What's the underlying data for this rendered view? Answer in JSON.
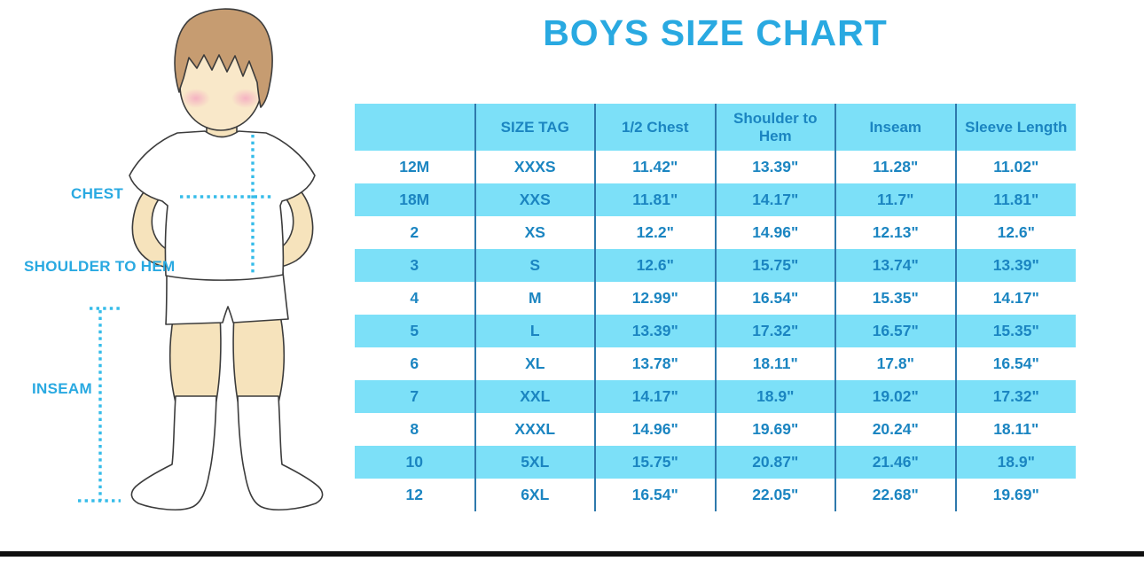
{
  "title": "BOYS SIZE CHART",
  "measurement_labels": {
    "chest": "CHEST",
    "shoulder_to_hem": "SHOULDER TO HEM",
    "inseam": "INSEAM"
  },
  "illustration": "boy-standing-front-illustration",
  "colors": {
    "accent_blue": "#29A9E1",
    "row_cyan": "#7CE0F8",
    "table_text_blue": "#1B85C1",
    "column_divider_blue": "#2E79AC",
    "dotted_measure_line": "#36BCE9",
    "skin": "#F6E3BC",
    "hair_brown": "#C69C71",
    "bottom_bar_black": "#0F0F0F"
  },
  "chart_data": {
    "type": "table",
    "title": "BOYS SIZE CHART",
    "columns": [
      "",
      "SIZE TAG",
      "1/2 Chest",
      "Shoulder to Hem",
      "Inseam",
      "Sleeve Length"
    ],
    "rows": [
      [
        "12M",
        "XXXS",
        "11.42\"",
        "13.39\"",
        "11.28\"",
        "11.02\""
      ],
      [
        "18M",
        "XXS",
        "11.81\"",
        "14.17\"",
        "11.7\"",
        "11.81\""
      ],
      [
        "2",
        "XS",
        "12.2\"",
        "14.96\"",
        "12.13\"",
        "12.6\""
      ],
      [
        "3",
        "S",
        "12.6\"",
        "15.75\"",
        "13.74\"",
        "13.39\""
      ],
      [
        "4",
        "M",
        "12.99\"",
        "16.54\"",
        "15.35\"",
        "14.17\""
      ],
      [
        "5",
        "L",
        "13.39\"",
        "17.32\"",
        "16.57\"",
        "15.35\""
      ],
      [
        "6",
        "XL",
        "13.78\"",
        "18.11\"",
        "17.8\"",
        "16.54\""
      ],
      [
        "7",
        "XXL",
        "14.17\"",
        "18.9\"",
        "19.02\"",
        "17.32\""
      ],
      [
        "8",
        "XXXL",
        "14.96\"",
        "19.69\"",
        "20.24\"",
        "18.11\""
      ],
      [
        "10",
        "5XL",
        "15.75\"",
        "20.87\"",
        "21.46\"",
        "18.9\""
      ],
      [
        "12",
        "6XL",
        "16.54\"",
        "22.05\"",
        "22.68\"",
        "19.69\""
      ]
    ],
    "layout": {
      "striped": true,
      "legend": "none",
      "grid": "vertical-dividers-only"
    }
  }
}
